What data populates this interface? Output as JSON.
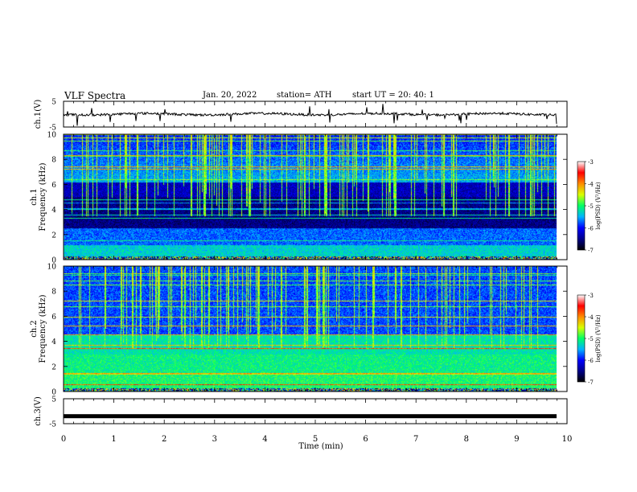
{
  "header": {
    "title": "VLF  Spectra",
    "date": "Jan. 20, 2022",
    "station": "station= ATH",
    "start": "start  UT  =   20: 40: 1"
  },
  "chart_data": [
    {
      "type": "line",
      "panel": "ch1-waveform",
      "ylabel": "ch.1(V)",
      "xlim": [
        0,
        10
      ],
      "ylim": [
        -5,
        5
      ],
      "y_ticks": [
        "5",
        "-5"
      ],
      "baseline": 0
    },
    {
      "type": "heatmap",
      "panel": "ch1-spectrogram",
      "ylabel": "ch.1\nFrequency  (kHz)",
      "xlim": [
        0,
        10
      ],
      "ylim": [
        0,
        10
      ],
      "y_ticks": [
        "0",
        "2",
        "4",
        "6",
        "8",
        "10"
      ],
      "colorbar": {
        "label": "log(PSD) (V²/Hz)",
        "ticks": [
          "-3",
          "-4",
          "-5",
          "-6",
          "-7"
        ],
        "range": [
          -7,
          -3
        ]
      }
    },
    {
      "type": "heatmap",
      "panel": "ch2-spectrogram",
      "ylabel": "ch.2\nFrequency  (kHz)",
      "xlim": [
        0,
        10
      ],
      "ylim": [
        0,
        10
      ],
      "y_ticks": [
        "0",
        "2",
        "4",
        "6",
        "8",
        "10"
      ],
      "colorbar": {
        "label": "log(PSD) (V²/Hz)",
        "ticks": [
          "-3",
          "-4",
          "-5",
          "-6",
          "-7"
        ],
        "range": [
          -7,
          -3
        ]
      }
    },
    {
      "type": "line",
      "panel": "ch3-waveform",
      "ylabel": "ch.3(V)",
      "xlim": [
        0,
        10
      ],
      "ylim": [
        -5,
        5
      ],
      "y_ticks": [
        "5",
        "-5"
      ],
      "baseline": -2
    }
  ],
  "xaxis": {
    "label": "Time  (min)",
    "ticks": [
      "0",
      "1",
      "2",
      "3",
      "4",
      "5",
      "6",
      "7",
      "8",
      "9",
      "10"
    ],
    "data_end": 9.8
  },
  "colors": {
    "colormap": [
      "#000000",
      "#00008b",
      "#0000ff",
      "#00b4ff",
      "#00ff66",
      "#d8ff00",
      "#ff8c00",
      "#ff0000",
      "#ffffff"
    ]
  }
}
